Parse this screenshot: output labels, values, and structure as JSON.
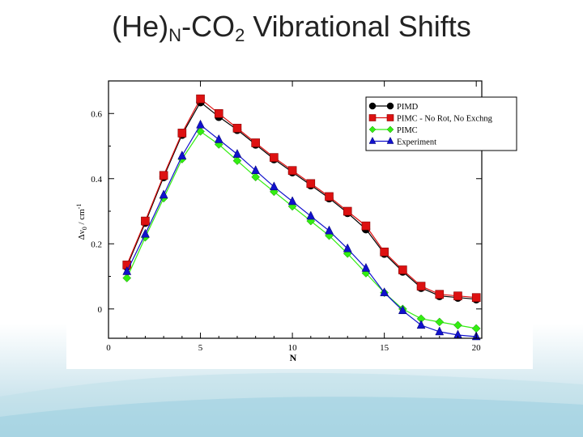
{
  "slide": {
    "title_main": "(He)",
    "title_sub_n": "N",
    "title_mid": "-CO",
    "title_sub_2": "2",
    "title_end": " Vibrational Shifts"
  },
  "chart_data": {
    "type": "line",
    "title": "(He)N-CO2 Vibrational Shifts",
    "xlabel": "N",
    "ylabel": "Δν0 / cm-1",
    "ylabel_parts": {
      "delta": "Δν",
      "sub": "0",
      "unit": " / cm",
      "sup": "-1"
    },
    "xlim": [
      0,
      20.3
    ],
    "ylim": [
      -0.09,
      0.7
    ],
    "xticks": [
      0,
      5,
      10,
      15,
      20
    ],
    "xticklabels": [
      "0",
      "5",
      "10",
      "15",
      "20"
    ],
    "yticks": [
      0,
      0.2,
      0.4,
      0.6
    ],
    "yticklabels": [
      "0",
      "0.2",
      "0.4",
      "0.6"
    ],
    "legend_position": "top-right",
    "x": [
      1,
      2,
      3,
      4,
      5,
      6,
      7,
      8,
      9,
      10,
      11,
      12,
      13,
      14,
      15,
      16,
      17,
      18,
      19,
      20
    ],
    "series": [
      {
        "name": "PIMD",
        "color": "#000000",
        "marker": "circle",
        "values": [
          0.13,
          0.265,
          0.405,
          0.535,
          0.635,
          0.59,
          0.55,
          0.505,
          0.46,
          0.42,
          0.38,
          0.34,
          0.295,
          0.245,
          0.17,
          0.115,
          0.065,
          0.04,
          0.035,
          0.03
        ]
      },
      {
        "name": "PIMC - No Rot, No Exchng",
        "color": "#dd1111",
        "marker": "square",
        "values": [
          0.135,
          0.27,
          0.41,
          0.54,
          0.645,
          0.6,
          0.555,
          0.51,
          0.465,
          0.425,
          0.385,
          0.345,
          0.3,
          0.255,
          0.175,
          0.12,
          0.07,
          0.045,
          0.04,
          0.035
        ]
      },
      {
        "name": "PIMC",
        "color": "#33ee11",
        "marker": "diamond",
        "values": [
          0.095,
          0.22,
          0.34,
          0.46,
          0.545,
          0.505,
          0.455,
          0.405,
          0.36,
          0.315,
          0.27,
          0.225,
          0.17,
          0.11,
          0.05,
          0.0,
          -0.03,
          -0.04,
          -0.05,
          -0.06
        ]
      },
      {
        "name": "Experiment",
        "color": "#1111cc",
        "marker": "triangle",
        "values": [
          0.115,
          0.23,
          0.35,
          0.47,
          0.565,
          0.52,
          0.475,
          0.425,
          0.375,
          0.33,
          0.285,
          0.24,
          0.185,
          0.125,
          0.05,
          -0.005,
          -0.05,
          -0.07,
          -0.08,
          -0.085
        ]
      }
    ]
  }
}
